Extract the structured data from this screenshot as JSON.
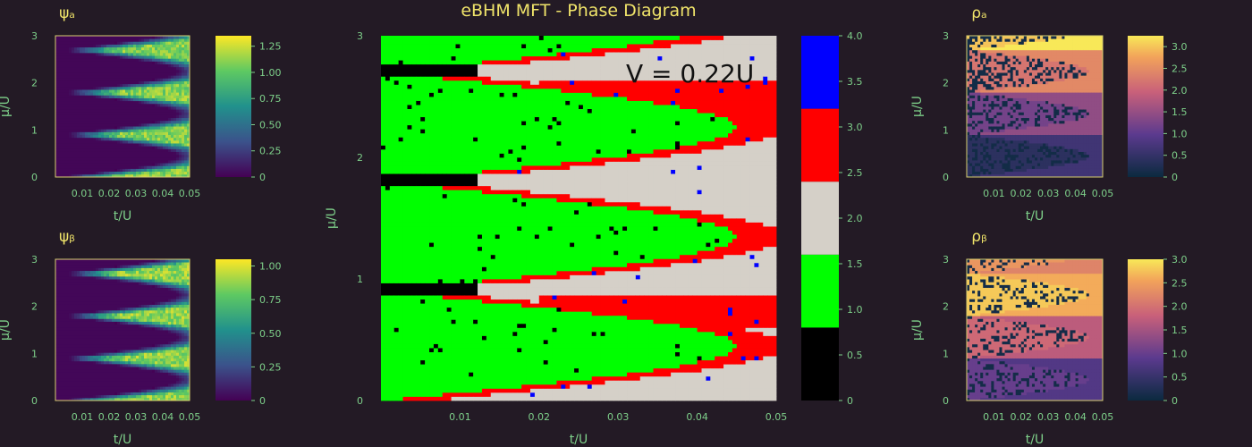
{
  "figure_title": "eBHM MFT - Phase Diagram",
  "annotation": "V = 0.22U",
  "colors": {
    "background": "#231a25",
    "title": "#f0e46a",
    "ticks": "#7ed08a",
    "frame": "#d8d070",
    "phase_black": "#000000",
    "phase_green": "#00ff00",
    "phase_grey": "#d5d0c8",
    "phase_red": "#ff0000",
    "phase_blue": "#0000ff"
  },
  "chart_data": [
    {
      "id": "psi-a",
      "type": "heatmap",
      "title": "ψₐ",
      "xlabel": "t/U",
      "ylabel": "μ/U",
      "x_ticks": [
        "0.01",
        "0.02",
        "0.03",
        "0.04",
        "0.05"
      ],
      "y_ticks": [
        "0",
        "1",
        "2",
        "3"
      ],
      "xlim": [
        0,
        0.05
      ],
      "ylim": [
        0,
        3
      ],
      "colormap": "viridis",
      "colorbar_range": [
        0,
        1.35
      ],
      "colorbar_ticks": [
        "0",
        "0.25",
        "0.50",
        "0.75",
        "1.00",
        "1.25"
      ],
      "lobe_boundaries_mu": [
        0,
        0.9,
        1.8,
        2.7
      ],
      "superfluid_onset_t": 0.042
    },
    {
      "id": "psi-b",
      "type": "heatmap",
      "title": "ψᵦ",
      "xlabel": "t/U",
      "ylabel": "μ/U",
      "x_ticks": [
        "0.01",
        "0.02",
        "0.03",
        "0.04",
        "0.05"
      ],
      "y_ticks": [
        "0",
        "1",
        "2",
        "3"
      ],
      "xlim": [
        0,
        0.05
      ],
      "ylim": [
        0,
        3
      ],
      "colormap": "viridis",
      "colorbar_range": [
        0,
        1.05
      ],
      "colorbar_ticks": [
        "0",
        "0.25",
        "0.50",
        "0.75",
        "1.00"
      ],
      "lobe_boundaries_mu": [
        0,
        0.9,
        1.8,
        2.7
      ],
      "superfluid_onset_t": 0.042
    },
    {
      "id": "phase",
      "type": "heatmap",
      "title": "eBHM MFT - Phase Diagram",
      "xlabel": "t/U",
      "ylabel": "μ/U",
      "x_ticks": [
        "0.01",
        "0.02",
        "0.03",
        "0.04",
        "0.05"
      ],
      "y_ticks": [
        "0",
        "1",
        "2",
        "3"
      ],
      "xlim": [
        0,
        0.05
      ],
      "ylim": [
        0,
        3
      ],
      "colormap": "discrete",
      "colorbar_range": [
        0,
        4
      ],
      "colorbar_ticks": [
        "0",
        "0.5",
        "1.0",
        "1.5",
        "2.0",
        "2.5",
        "3.0",
        "3.5",
        "4.0"
      ],
      "levels": [
        {
          "range": [
            0,
            0.8
          ],
          "color": "#000000"
        },
        {
          "range": [
            0.8,
            1.6
          ],
          "color": "#00ff00"
        },
        {
          "range": [
            1.6,
            2.4
          ],
          "color": "#d5d0c8"
        },
        {
          "range": [
            2.4,
            3.2
          ],
          "color": "#ff0000"
        },
        {
          "range": [
            3.2,
            4.0
          ],
          "color": "#0000ff"
        }
      ]
    },
    {
      "id": "rho-a",
      "type": "heatmap",
      "title": "ρₐ",
      "xlabel": "t/U",
      "ylabel": "μ/U",
      "x_ticks": [
        "0.01",
        "0.02",
        "0.03",
        "0.04",
        "0.05"
      ],
      "y_ticks": [
        "0",
        "1",
        "2",
        "3"
      ],
      "xlim": [
        0,
        0.05
      ],
      "ylim": [
        0,
        3
      ],
      "colormap": "plasma",
      "colorbar_range": [
        0,
        3.25
      ],
      "colorbar_ticks": [
        "0",
        "0.5",
        "1.0",
        "1.5",
        "2.0",
        "2.5",
        "3.0"
      ]
    },
    {
      "id": "rho-b",
      "type": "heatmap",
      "title": "ρᵦ",
      "xlabel": "t/U",
      "ylabel": "μ/U",
      "x_ticks": [
        "0.01",
        "0.02",
        "0.03",
        "0.04",
        "0.05"
      ],
      "y_ticks": [
        "0",
        "1",
        "2",
        "3"
      ],
      "xlim": [
        0,
        0.05
      ],
      "ylim": [
        0,
        3
      ],
      "colormap": "plasma",
      "colorbar_range": [
        0,
        3.0
      ],
      "colorbar_ticks": [
        "0",
        "0.5",
        "1.0",
        "1.5",
        "2.0",
        "2.5",
        "3.0"
      ]
    }
  ]
}
